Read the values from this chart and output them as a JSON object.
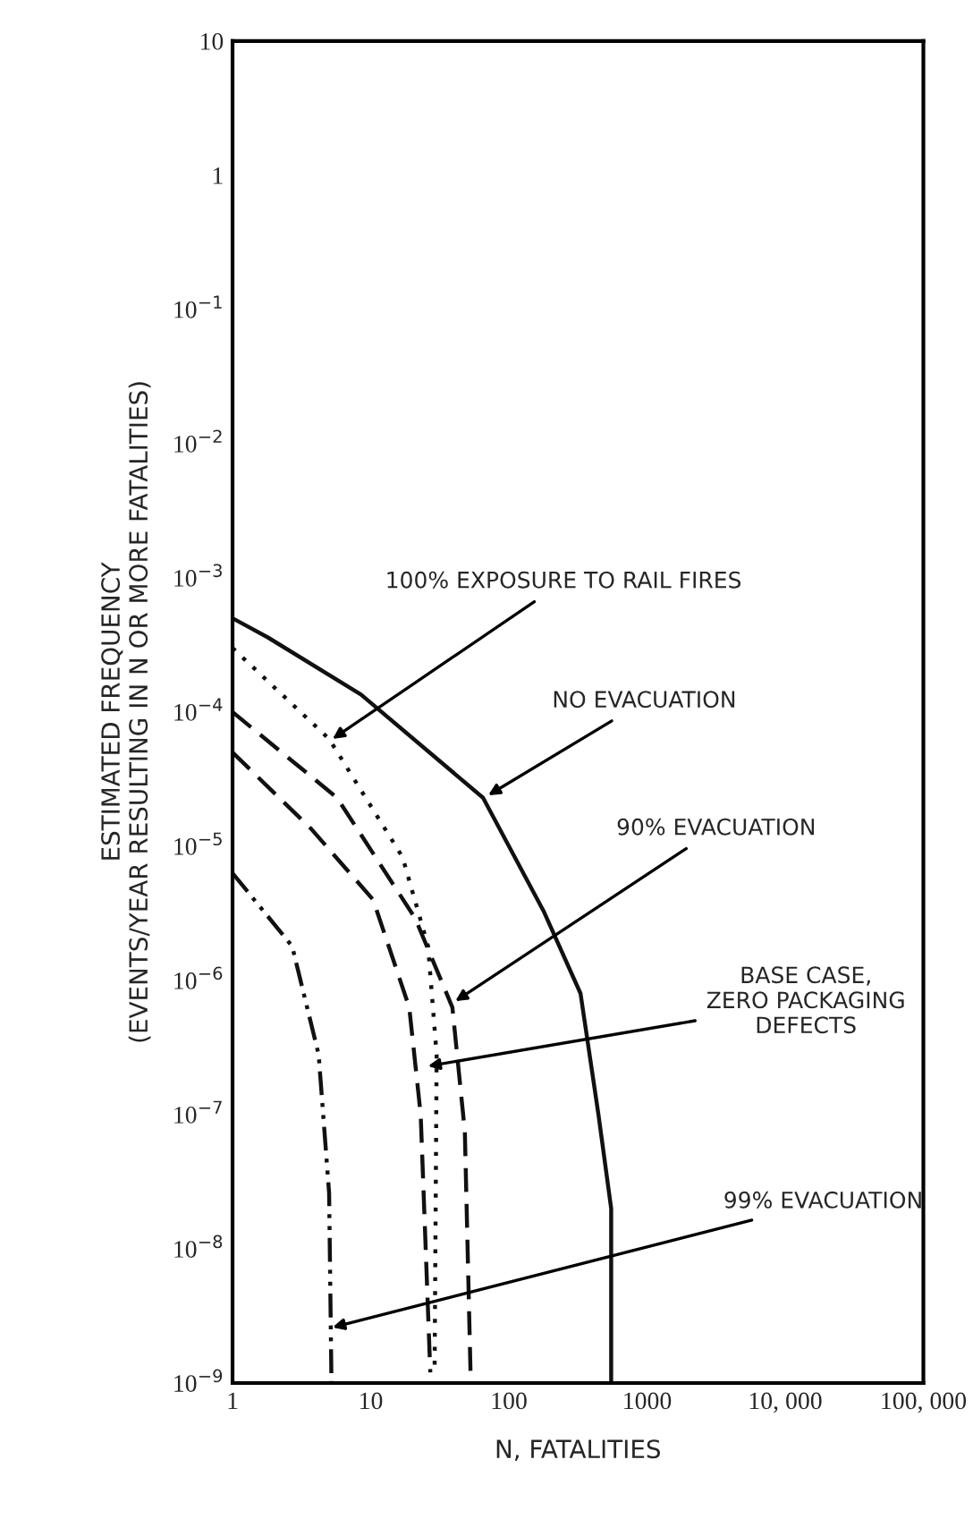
{
  "chart_data": {
    "type": "line",
    "xlabel": "N, FATALITIES",
    "ylabel": "ESTIMATED FREQUENCY\n(EVENTS/YEAR RESULTING IN N OR MORE FATALITIES)",
    "log": "xy",
    "grid": false,
    "marker": "none",
    "xlim": [
      1,
      100000
    ],
    "ylim": [
      1e-09,
      10
    ],
    "xticks": [
      1,
      10,
      100,
      1000,
      {
        "value": 10000,
        "label": "10, 000"
      },
      {
        "value": 100000,
        "label": "100, 000"
      }
    ],
    "yticks": [
      {
        "value": 1e-09,
        "label": "10$^{−9}$"
      },
      {
        "value": 1e-08,
        "label": "10$^{−8}$"
      },
      {
        "value": 1e-07,
        "label": "10$^{−7}$"
      },
      {
        "value": 1e-06,
        "label": "10$^{−6}$"
      },
      {
        "value": 1e-05,
        "label": "10$^{−5}$"
      },
      {
        "value": 0.0001,
        "label": "10$^{−4}$"
      },
      {
        "value": 0.001,
        "label": "10$^{−3}$"
      },
      {
        "value": 0.01,
        "label": "10$^{−2}$"
      },
      {
        "value": 0.1,
        "label": "10$^{−1}$"
      },
      1,
      10
    ],
    "series": [
      {
        "color": "#111111",
        "line_style": "solid",
        "x": [
          1,
          1.8,
          8.5,
          65,
          178,
          330,
          445,
          550,
          550
        ],
        "values": [
          0.0005,
          0.00036,
          0.000135,
          2.3e-05,
          3.3e-06,
          8e-07,
          1e-07,
          2e-08,
          1e-09
        ]
      },
      {
        "color": "#111111",
        "line_style": "dotted",
        "x": [
          1,
          5,
          17,
          26,
          30,
          29
        ],
        "values": [
          0.0003,
          6.3e-05,
          8.3e-06,
          1.8e-06,
          2.8e-07,
          1.2e-09
        ]
      },
      {
        "color": "#111111",
        "line_style": "dashed",
        "x": [
          1,
          5.7,
          21,
          39,
          48,
          53
        ],
        "values": [
          0.0001,
          2.3e-05,
          2.9e-06,
          6.3e-07,
          7.5e-08,
          1e-09
        ]
      },
      {
        "color": "#111111",
        "line_style": "dashed",
        "x": [
          1,
          3.7,
          10.4,
          19,
          23,
          27
        ],
        "values": [
          5e-05,
          1.35e-05,
          4e-06,
          6.3e-07,
          1e-07,
          1.2e-09
        ]
      },
      {
        "color": "#111111",
        "line_style": "dashdot",
        "x": [
          1,
          2.7,
          4.2,
          5,
          5.2
        ],
        "values": [
          6.3e-06,
          1.8e-06,
          2.8e-07,
          2.6e-08,
          1e-09
        ]
      }
    ],
    "annotations": [
      {
        "text": "100% EXPOSURE TO RAIL FIRES",
        "x": 5.3,
        "y": 6.3e-05
      },
      {
        "text": "NO EVACUATION",
        "x": 71,
        "y": 2.4e-05
      },
      {
        "text": "90% EVACUATION",
        "x": 41,
        "y": 7e-07
      },
      {
        "text": "BASE CASE,\nZERO PACKAGING\nDEFECTS",
        "x": 26,
        "y": 2.3e-07
      },
      {
        "text": "99% EVACUATION",
        "x": 5.3,
        "y": 2.6e-09
      }
    ]
  }
}
